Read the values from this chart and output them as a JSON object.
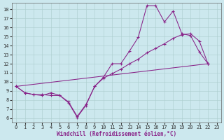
{
  "bg_color": "#cce8ee",
  "grid_color": "#aacccc",
  "line_color": "#882288",
  "xlabel": "Windchill (Refroidissement éolien,°C)",
  "xlim": [
    -0.5,
    23.5
  ],
  "ylim": [
    5.5,
    18.7
  ],
  "xticks": [
    0,
    1,
    2,
    3,
    4,
    5,
    6,
    7,
    8,
    9,
    10,
    11,
    12,
    13,
    14,
    15,
    16,
    17,
    18,
    19,
    20,
    21,
    22,
    23
  ],
  "yticks": [
    6,
    7,
    8,
    9,
    10,
    11,
    12,
    13,
    14,
    15,
    16,
    17,
    18
  ],
  "line1_x": [
    0,
    1,
    2,
    3,
    4,
    5,
    6,
    7,
    8,
    9,
    10,
    11,
    12,
    13,
    14,
    15,
    16,
    17,
    18,
    19,
    20,
    21,
    22
  ],
  "line1_y": [
    9.5,
    8.8,
    8.6,
    8.5,
    8.8,
    8.5,
    7.7,
    6.1,
    7.4,
    9.5,
    10.5,
    12.0,
    12.0,
    13.4,
    14.9,
    18.4,
    18.4,
    16.6,
    17.8,
    15.3,
    15.1,
    13.3,
    12.0
  ],
  "line2_x": [
    0,
    1,
    2,
    3,
    4,
    5,
    6,
    7,
    8,
    9,
    10,
    11,
    12,
    13,
    14,
    15,
    16,
    17,
    18,
    19,
    20,
    21,
    22
  ],
  "line2_y": [
    9.5,
    8.8,
    8.6,
    8.6,
    8.5,
    8.5,
    7.8,
    6.2,
    7.5,
    9.5,
    10.4,
    10.9,
    11.4,
    12.0,
    12.5,
    13.2,
    13.7,
    14.2,
    14.8,
    15.2,
    15.3,
    14.5,
    12.0
  ],
  "line3_x": [
    0,
    22
  ],
  "line3_y": [
    9.5,
    12.0
  ],
  "tick_color": "#333333",
  "tick_fontsize": 5.0,
  "xlabel_fontsize": 5.5,
  "lw": 0.75,
  "ms": 3.0,
  "mew": 0.8
}
